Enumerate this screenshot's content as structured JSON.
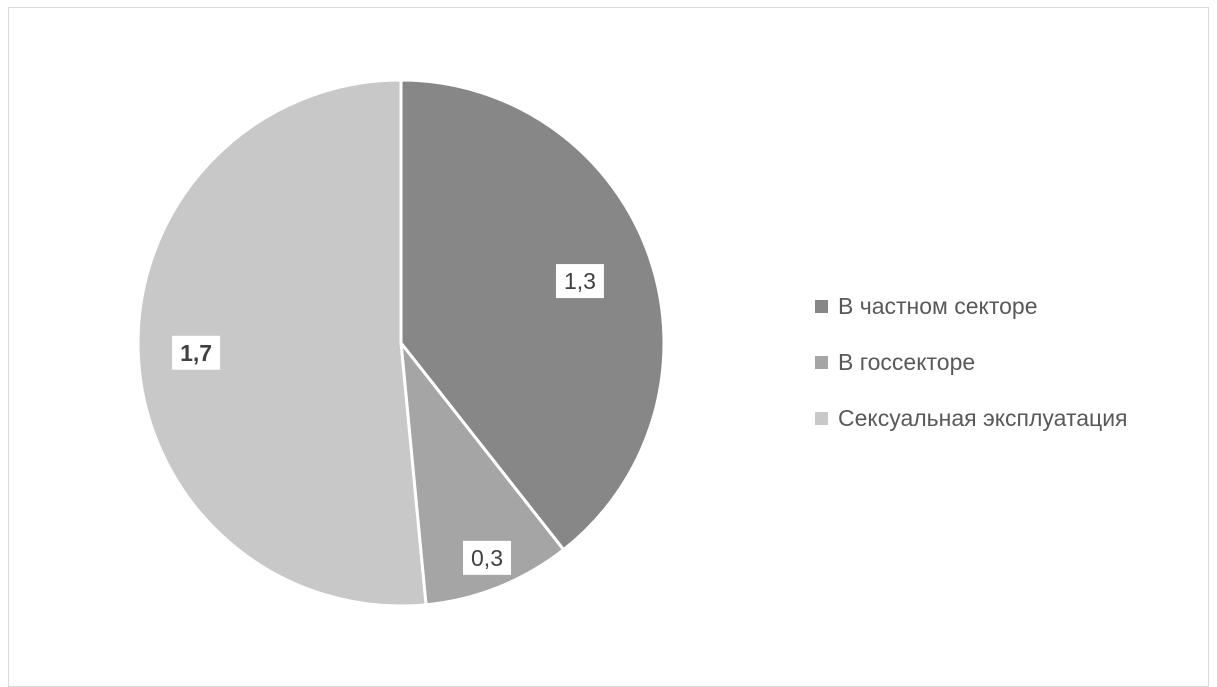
{
  "chart_data": {
    "type": "pie",
    "title": "",
    "categories": [
      "В частном секторе",
      "В госсекторе",
      "Сексуальная эксплуатация"
    ],
    "values": [
      1.3,
      0.3,
      1.7
    ],
    "data_labels": [
      "1,3",
      "0,3",
      "1,7"
    ],
    "colors": [
      "#878787",
      "#a5a5a5",
      "#c8c8c8"
    ],
    "start_angle_deg": 0,
    "direction": "clockwise",
    "legend_position": "right"
  }
}
